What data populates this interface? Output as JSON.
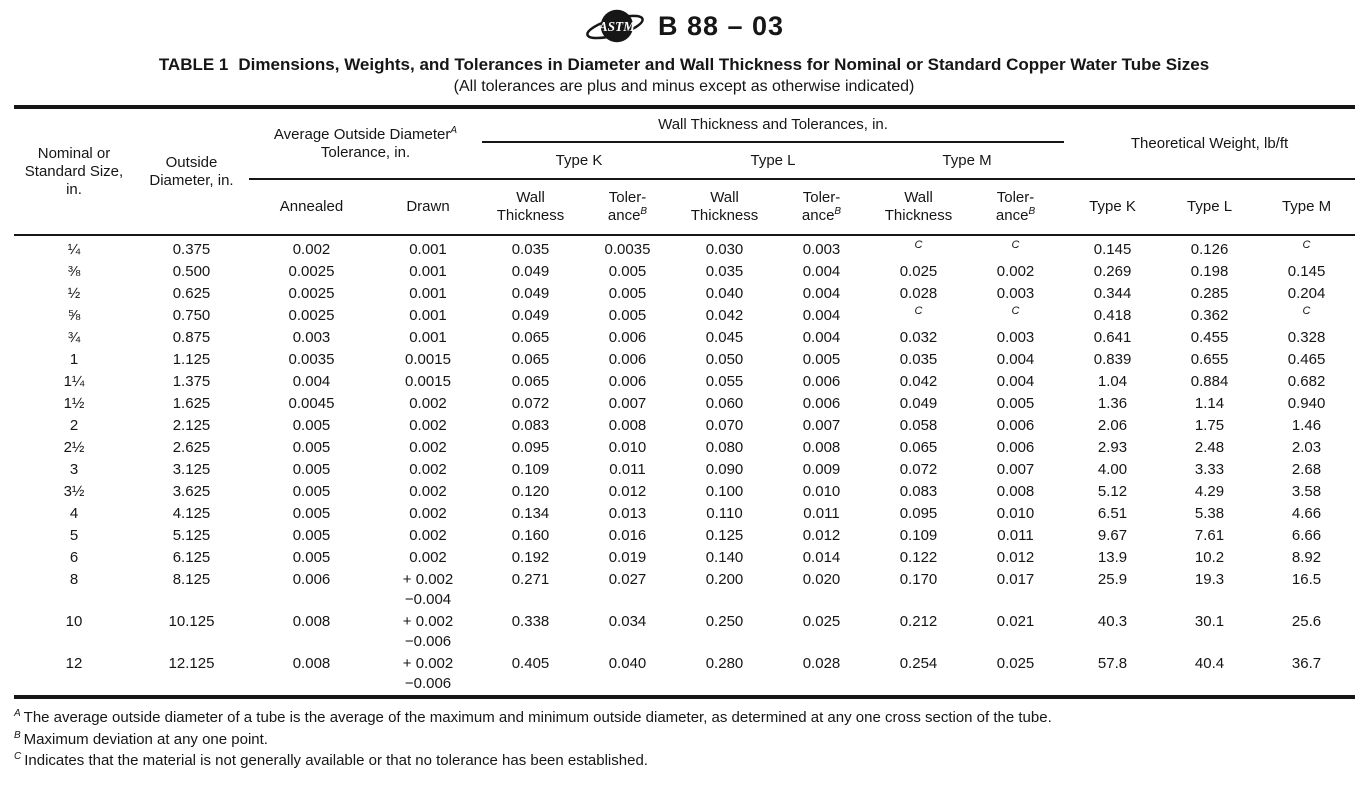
{
  "page": {
    "doc_code": "B 88 – 03"
  },
  "logo": {
    "text": "ASTM"
  },
  "table": {
    "title_label": "TABLE 1",
    "title": "Dimensions, Weights, and Tolerances in Diameter and Wall Thickness for Nominal or Standard Copper Water Tube Sizes",
    "subtitle": "(All tolerances are plus and minus except as otherwise indicated)",
    "head": {
      "size": "Nominal or Standard Size, in.",
      "od": "Outside Diameter, in.",
      "avg_od": {
        "pre": "Average Outside Diameter",
        "sup": "A",
        "post": " Tolerance, in."
      },
      "wall_group": "Wall Thickness and Tolerances, in.",
      "weight_group": "Theoretical Weight, lb/ft",
      "type_k": "Type K",
      "type_l": "Type L",
      "type_m": "Type M",
      "annealed": "Annealed",
      "drawn": "Drawn",
      "wall": "Wall Thickness",
      "tol": {
        "l1": "Toler-",
        "l2": "ance",
        "sup": "B"
      },
      "wt_k": "Type K",
      "wt_l": "Type L",
      "wt_m": "Type M"
    },
    "na_marker": "C",
    "rows": [
      {
        "size": "¼",
        "od": "0.375",
        "annealed": "0.002",
        "drawn": "0.001",
        "k_wall": "0.035",
        "k_tol": "0.0035",
        "l_wall": "0.030",
        "l_tol": "0.003",
        "m_wall": "C",
        "m_tol": "C",
        "wt_k": "0.145",
        "wt_l": "0.126",
        "wt_m": "C"
      },
      {
        "size": "⅜",
        "od": "0.500",
        "annealed": "0.0025",
        "drawn": "0.001",
        "k_wall": "0.049",
        "k_tol": "0.005",
        "l_wall": "0.035",
        "l_tol": "0.004",
        "m_wall": "0.025",
        "m_tol": "0.002",
        "wt_k": "0.269",
        "wt_l": "0.198",
        "wt_m": "0.145"
      },
      {
        "size": "½",
        "od": "0.625",
        "annealed": "0.0025",
        "drawn": "0.001",
        "k_wall": "0.049",
        "k_tol": "0.005",
        "l_wall": "0.040",
        "l_tol": "0.004",
        "m_wall": "0.028",
        "m_tol": "0.003",
        "wt_k": "0.344",
        "wt_l": "0.285",
        "wt_m": "0.204"
      },
      {
        "size": "⅝",
        "od": "0.750",
        "annealed": "0.0025",
        "drawn": "0.001",
        "k_wall": "0.049",
        "k_tol": "0.005",
        "l_wall": "0.042",
        "l_tol": "0.004",
        "m_wall": "C",
        "m_tol": "C",
        "wt_k": "0.418",
        "wt_l": "0.362",
        "wt_m": "C"
      },
      {
        "size": "¾",
        "od": "0.875",
        "annealed": "0.003",
        "drawn": "0.001",
        "k_wall": "0.065",
        "k_tol": "0.006",
        "l_wall": "0.045",
        "l_tol": "0.004",
        "m_wall": "0.032",
        "m_tol": "0.003",
        "wt_k": "0.641",
        "wt_l": "0.455",
        "wt_m": "0.328"
      },
      {
        "size": "1",
        "od": "1.125",
        "annealed": "0.0035",
        "drawn": "0.0015",
        "k_wall": "0.065",
        "k_tol": "0.006",
        "l_wall": "0.050",
        "l_tol": "0.005",
        "m_wall": "0.035",
        "m_tol": "0.004",
        "wt_k": "0.839",
        "wt_l": "0.655",
        "wt_m": "0.465"
      },
      {
        "size": "1¼",
        "od": "1.375",
        "annealed": "0.004",
        "drawn": "0.0015",
        "k_wall": "0.065",
        "k_tol": "0.006",
        "l_wall": "0.055",
        "l_tol": "0.006",
        "m_wall": "0.042",
        "m_tol": "0.004",
        "wt_k": "1.04",
        "wt_l": "0.884",
        "wt_m": "0.682"
      },
      {
        "size": "1½",
        "od": "1.625",
        "annealed": "0.0045",
        "drawn": "0.002",
        "k_wall": "0.072",
        "k_tol": "0.007",
        "l_wall": "0.060",
        "l_tol": "0.006",
        "m_wall": "0.049",
        "m_tol": "0.005",
        "wt_k": "1.36",
        "wt_l": "1.14",
        "wt_m": "0.940"
      },
      {
        "size": "2",
        "od": "2.125",
        "annealed": "0.005",
        "drawn": "0.002",
        "k_wall": "0.083",
        "k_tol": "0.008",
        "l_wall": "0.070",
        "l_tol": "0.007",
        "m_wall": "0.058",
        "m_tol": "0.006",
        "wt_k": "2.06",
        "wt_l": "1.75",
        "wt_m": "1.46"
      },
      {
        "size": "2½",
        "od": "2.625",
        "annealed": "0.005",
        "drawn": "0.002",
        "k_wall": "0.095",
        "k_tol": "0.010",
        "l_wall": "0.080",
        "l_tol": "0.008",
        "m_wall": "0.065",
        "m_tol": "0.006",
        "wt_k": "2.93",
        "wt_l": "2.48",
        "wt_m": "2.03"
      },
      {
        "size": "3",
        "od": "3.125",
        "annealed": "0.005",
        "drawn": "0.002",
        "k_wall": "0.109",
        "k_tol": "0.011",
        "l_wall": "0.090",
        "l_tol": "0.009",
        "m_wall": "0.072",
        "m_tol": "0.007",
        "wt_k": "4.00",
        "wt_l": "3.33",
        "wt_m": "2.68"
      },
      {
        "size": "3½",
        "od": "3.625",
        "annealed": "0.005",
        "drawn": "0.002",
        "k_wall": "0.120",
        "k_tol": "0.012",
        "l_wall": "0.100",
        "l_tol": "0.010",
        "m_wall": "0.083",
        "m_tol": "0.008",
        "wt_k": "5.12",
        "wt_l": "4.29",
        "wt_m": "3.58"
      },
      {
        "size": "4",
        "od": "4.125",
        "annealed": "0.005",
        "drawn": "0.002",
        "k_wall": "0.134",
        "k_tol": "0.013",
        "l_wall": "0.110",
        "l_tol": "0.011",
        "m_wall": "0.095",
        "m_tol": "0.010",
        "wt_k": "6.51",
        "wt_l": "5.38",
        "wt_m": "4.66"
      },
      {
        "size": "5",
        "od": "5.125",
        "annealed": "0.005",
        "drawn": "0.002",
        "k_wall": "0.160",
        "k_tol": "0.016",
        "l_wall": "0.125",
        "l_tol": "0.012",
        "m_wall": "0.109",
        "m_tol": "0.011",
        "wt_k": "9.67",
        "wt_l": "7.61",
        "wt_m": "6.66"
      },
      {
        "size": "6",
        "od": "6.125",
        "annealed": "0.005",
        "drawn": "0.002",
        "k_wall": "0.192",
        "k_tol": "0.019",
        "l_wall": "0.140",
        "l_tol": "0.014",
        "m_wall": "0.122",
        "m_tol": "0.012",
        "wt_k": "13.9",
        "wt_l": "10.2",
        "wt_m": "8.92"
      },
      {
        "size": "8",
        "od": "8.125",
        "annealed": "0.006",
        "drawn": "+ 0.002\n−0.004",
        "k_wall": "0.271",
        "k_tol": "0.027",
        "l_wall": "0.200",
        "l_tol": "0.020",
        "m_wall": "0.170",
        "m_tol": "0.017",
        "wt_k": "25.9",
        "wt_l": "19.3",
        "wt_m": "16.5"
      },
      {
        "size": "10",
        "od": "10.125",
        "annealed": "0.008",
        "drawn": "+ 0.002\n−0.006",
        "k_wall": "0.338",
        "k_tol": "0.034",
        "l_wall": "0.250",
        "l_tol": "0.025",
        "m_wall": "0.212",
        "m_tol": "0.021",
        "wt_k": "40.3",
        "wt_l": "30.1",
        "wt_m": "25.6"
      },
      {
        "size": "12",
        "od": "12.125",
        "annealed": "0.008",
        "drawn": "+ 0.002\n−0.006",
        "k_wall": "0.405",
        "k_tol": "0.040",
        "l_wall": "0.280",
        "l_tol": "0.028",
        "m_wall": "0.254",
        "m_tol": "0.025",
        "wt_k": "57.8",
        "wt_l": "40.4",
        "wt_m": "36.7"
      }
    ]
  },
  "footnotes": [
    {
      "marker": "A",
      "text": "The average outside diameter of a tube is the average of the maximum and minimum outside diameter, as determined at any one cross section of the tube."
    },
    {
      "marker": "B",
      "text": "Maximum deviation at any one point."
    },
    {
      "marker": "C",
      "text": "Indicates that the material is not generally available or that no tolerance has been established."
    }
  ]
}
